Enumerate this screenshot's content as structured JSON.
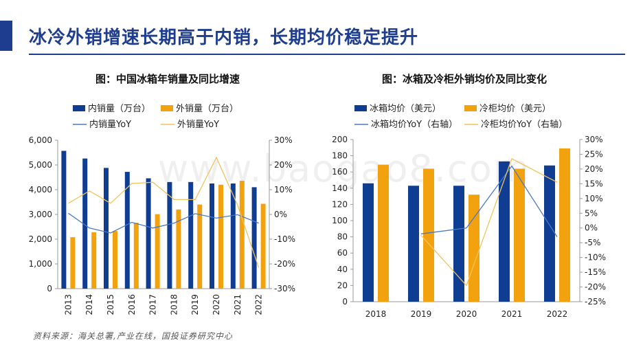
{
  "slide": {
    "title": "冰冷外销增速长期高于内销，长期均价稳定提升",
    "source": "资料来源：海关总署,产业在线，国投证券研究中心",
    "watermark": "www.baogao8.com",
    "accent_color": "#1f3d8f"
  },
  "colors": {
    "blue": "#0f3d91",
    "orange": "#f2a20e",
    "line_blue": "#4a78c8",
    "line_orange": "#f2c25c"
  },
  "chart_data": [
    {
      "type": "bar",
      "title": "图：中国冰箱年销量及同比增速",
      "categories": [
        "2013",
        "2014",
        "2015",
        "2016",
        "2017",
        "2018",
        "2019",
        "2020",
        "2021",
        "2022"
      ],
      "series": [
        {
          "name": "内销量（万台）",
          "type": "bar",
          "axis": "left",
          "values": [
            5570,
            5260,
            4880,
            4720,
            4460,
            4310,
            4310,
            4250,
            4250,
            4100
          ]
        },
        {
          "name": "外销量（万台）",
          "type": "bar",
          "axis": "left",
          "values": [
            2080,
            2280,
            2330,
            2660,
            3010,
            3200,
            3400,
            4200,
            4360,
            3430
          ]
        },
        {
          "name": "内销量YoY",
          "type": "line",
          "axis": "right",
          "values": [
            0.5,
            -5.5,
            -7.5,
            -3.2,
            -5.5,
            -3.5,
            0.3,
            -1.5,
            -0.1,
            -3.5
          ]
        },
        {
          "name": "外销量YoY",
          "type": "line",
          "axis": "right",
          "values": [
            4.5,
            9.5,
            4.5,
            12.5,
            13.0,
            6.0,
            6.0,
            23.0,
            3.8,
            -21.5
          ]
        }
      ],
      "y_left": {
        "min": 0,
        "max": 6000,
        "ticks": [
          "0",
          "1,000",
          "2,000",
          "3,000",
          "4,000",
          "5,000",
          "6,000"
        ]
      },
      "y_right": {
        "min": -30,
        "max": 30,
        "ticks": [
          "-30%",
          "-20%",
          "-10%",
          "0%",
          "10%",
          "20%",
          "30%"
        ]
      }
    },
    {
      "type": "bar",
      "title": "图：冰箱及冷柜外销均价及同比变化",
      "categories": [
        "2018",
        "2019",
        "2020",
        "2021",
        "2022"
      ],
      "series": [
        {
          "name": "冰箱均价（美元）",
          "type": "bar",
          "axis": "left",
          "values": [
            146,
            143,
            143,
            173,
            168
          ]
        },
        {
          "name": "冷柜均价（美元）",
          "type": "bar",
          "axis": "left",
          "values": [
            169,
            164,
            132,
            164,
            189
          ]
        },
        {
          "name": "冰箱均价YoY（右轴）",
          "type": "line",
          "axis": "right",
          "values": [
            null,
            -2.0,
            0.0,
            21.0,
            -3.0
          ]
        },
        {
          "name": "冷柜均价YoY（右轴）",
          "type": "line",
          "axis": "right",
          "values": [
            null,
            -2.5,
            -19.5,
            23.5,
            15.5
          ]
        }
      ],
      "y_left": {
        "min": 0,
        "max": 200,
        "ticks": [
          "0",
          "20",
          "40",
          "60",
          "80",
          "100",
          "120",
          "140",
          "160",
          "180",
          "200"
        ]
      },
      "y_right": {
        "min": -25,
        "max": 30,
        "ticks": [
          "-25%",
          "-20%",
          "-15%",
          "-10%",
          "-5%",
          "0%",
          "5%",
          "10%",
          "15%",
          "20%",
          "25%",
          "30%"
        ]
      }
    }
  ]
}
